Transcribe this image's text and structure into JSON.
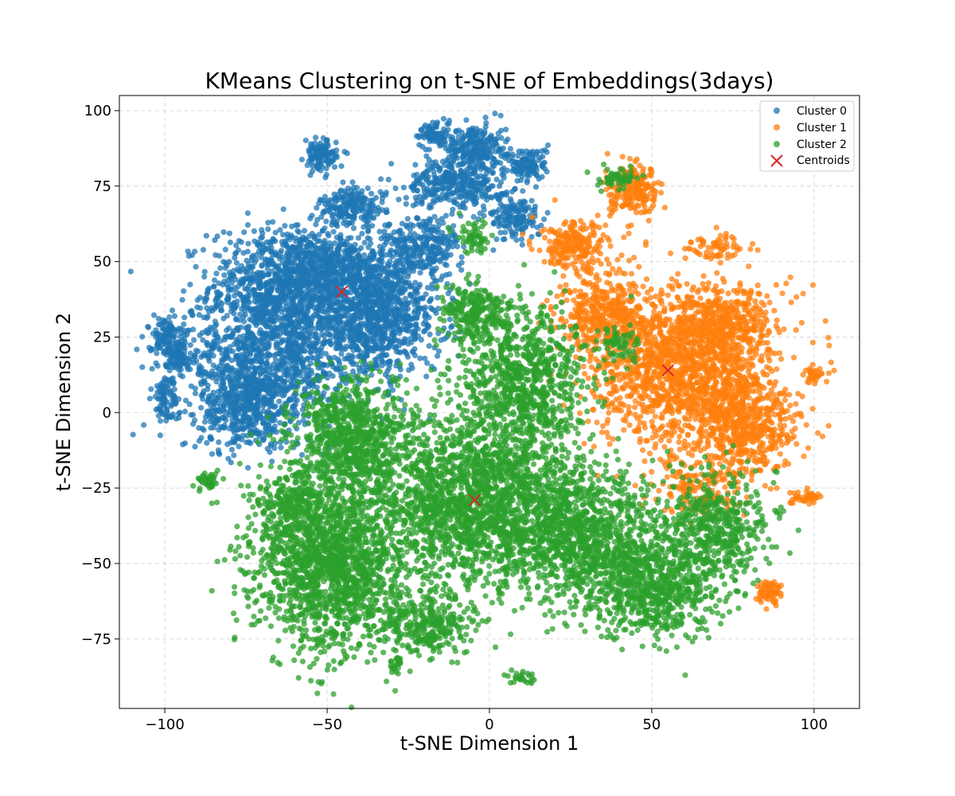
{
  "chart_data": {
    "type": "scatter",
    "title": "KMeans Clustering on t-SNE of Embeddings(3days)",
    "xlabel": "t-SNE Dimension 1",
    "ylabel": "t-SNE Dimension 2",
    "xlim": [
      -114,
      114
    ],
    "ylim": [
      -98,
      105
    ],
    "xticks": [
      -100,
      -50,
      0,
      50,
      100
    ],
    "xtick_labels": [
      "−100",
      "−50",
      "0",
      "50",
      "100"
    ],
    "yticks": [
      -75,
      -50,
      -25,
      0,
      25,
      50,
      75,
      100
    ],
    "ytick_labels": [
      "−75",
      "−50",
      "−25",
      "0",
      "25",
      "50",
      "75",
      "100"
    ],
    "grid": true,
    "legend_position": "top-right",
    "series": [
      {
        "name": "Cluster 0",
        "color": "#1f77b4",
        "marker": "circle",
        "regions": [
          {
            "cx": -62,
            "cy": 42,
            "sx": 12,
            "sy": 10,
            "n": 900
          },
          {
            "cx": -68,
            "cy": 18,
            "sx": 13,
            "sy": 12,
            "n": 1000
          },
          {
            "cx": -75,
            "cy": 2,
            "sx": 7,
            "sy": 7,
            "n": 400
          },
          {
            "cx": -35,
            "cy": 32,
            "sx": 10,
            "sy": 10,
            "n": 1000
          },
          {
            "cx": -48,
            "cy": 48,
            "sx": 10,
            "sy": 7,
            "n": 400
          },
          {
            "cx": -42,
            "cy": 68,
            "sx": 5,
            "sy": 3,
            "n": 180
          },
          {
            "cx": -52,
            "cy": 85,
            "sx": 2.5,
            "sy": 2.5,
            "n": 120
          },
          {
            "cx": -20,
            "cy": 55,
            "sx": 6,
            "sy": 5,
            "n": 250
          },
          {
            "cx": -10,
            "cy": 76,
            "sx": 8,
            "sy": 4,
            "n": 350
          },
          {
            "cx": -5,
            "cy": 88,
            "sx": 5,
            "sy": 4,
            "n": 250
          },
          {
            "cx": 12,
            "cy": 82,
            "sx": 3,
            "sy": 3,
            "n": 120
          },
          {
            "cx": 8,
            "cy": 65,
            "sx": 4,
            "sy": 4,
            "n": 150
          },
          {
            "cx": -18,
            "cy": 92,
            "sx": 2,
            "sy": 2,
            "n": 60
          },
          {
            "cx": -100,
            "cy": 25,
            "sx": 2.5,
            "sy": 3,
            "n": 110
          },
          {
            "cx": -96,
            "cy": 19,
            "sx": 2,
            "sy": 3,
            "n": 80
          },
          {
            "cx": -100,
            "cy": 5,
            "sx": 2,
            "sy": 4,
            "n": 90
          }
        ]
      },
      {
        "name": "Cluster 1",
        "color": "#ff7f0e",
        "marker": "circle",
        "regions": [
          {
            "cx": 60,
            "cy": 15,
            "sx": 14,
            "sy": 14,
            "n": 1600
          },
          {
            "cx": 35,
            "cy": 33,
            "sx": 7,
            "sy": 7,
            "n": 350
          },
          {
            "cx": 80,
            "cy": -5,
            "sx": 8,
            "sy": 8,
            "n": 450
          },
          {
            "cx": 72,
            "cy": 28,
            "sx": 7,
            "sy": 6,
            "n": 300
          },
          {
            "cx": 26,
            "cy": 55,
            "sx": 5,
            "sy": 4,
            "n": 220
          },
          {
            "cx": 45,
            "cy": 73,
            "sx": 4,
            "sy": 4,
            "n": 200
          },
          {
            "cx": 86,
            "cy": -59,
            "sx": 2,
            "sy": 2,
            "n": 70
          },
          {
            "cx": 97,
            "cy": -28,
            "sx": 3,
            "sy": 1,
            "n": 40
          },
          {
            "cx": 100,
            "cy": 13,
            "sx": 1.5,
            "sy": 1.5,
            "n": 30
          },
          {
            "cx": 70,
            "cy": 55,
            "sx": 4,
            "sy": 2,
            "n": 60
          },
          {
            "cx": 65,
            "cy": -25,
            "sx": 6,
            "sy": 6,
            "n": 150
          }
        ]
      },
      {
        "name": "Cluster 2",
        "color": "#2ca02c",
        "marker": "circle",
        "regions": [
          {
            "cx": -48,
            "cy": -50,
            "sx": 12,
            "sy": 14,
            "n": 1700
          },
          {
            "cx": -42,
            "cy": -8,
            "sx": 9,
            "sy": 9,
            "n": 800
          },
          {
            "cx": -5,
            "cy": -30,
            "sx": 15,
            "sy": 14,
            "n": 1800
          },
          {
            "cx": 28,
            "cy": -40,
            "sx": 12,
            "sy": 11,
            "n": 1100
          },
          {
            "cx": 50,
            "cy": -58,
            "sx": 10,
            "sy": 8,
            "n": 700
          },
          {
            "cx": 70,
            "cy": -38,
            "sx": 9,
            "sy": 9,
            "n": 500
          },
          {
            "cx": 10,
            "cy": 10,
            "sx": 10,
            "sy": 12,
            "n": 900
          },
          {
            "cx": -5,
            "cy": 33,
            "sx": 5,
            "sy": 5,
            "n": 250
          },
          {
            "cx": -20,
            "cy": -70,
            "sx": 8,
            "sy": 5,
            "n": 300
          },
          {
            "cx": -60,
            "cy": -30,
            "sx": 6,
            "sy": 6,
            "n": 250
          },
          {
            "cx": 39,
            "cy": 78,
            "sx": 3,
            "sy": 2,
            "n": 60
          },
          {
            "cx": -87,
            "cy": -23,
            "sx": 1.5,
            "sy": 2,
            "n": 40
          },
          {
            "cx": -5,
            "cy": 58,
            "sx": 2.5,
            "sy": 3,
            "n": 60
          },
          {
            "cx": -28,
            "cy": -83,
            "sx": 1.5,
            "sy": 1.5,
            "n": 25
          },
          {
            "cx": 10,
            "cy": -88,
            "sx": 2,
            "sy": 1,
            "n": 25
          },
          {
            "cx": 40,
            "cy": 23,
            "sx": 3,
            "sy": 3,
            "n": 60
          }
        ]
      }
    ],
    "centroids": {
      "name": "Centroids",
      "color": "#d62728",
      "marker": "x",
      "points": [
        {
          "x": -45.5,
          "y": 40
        },
        {
          "x": 55,
          "y": 14
        },
        {
          "x": -4.5,
          "y": -29
        }
      ]
    }
  }
}
